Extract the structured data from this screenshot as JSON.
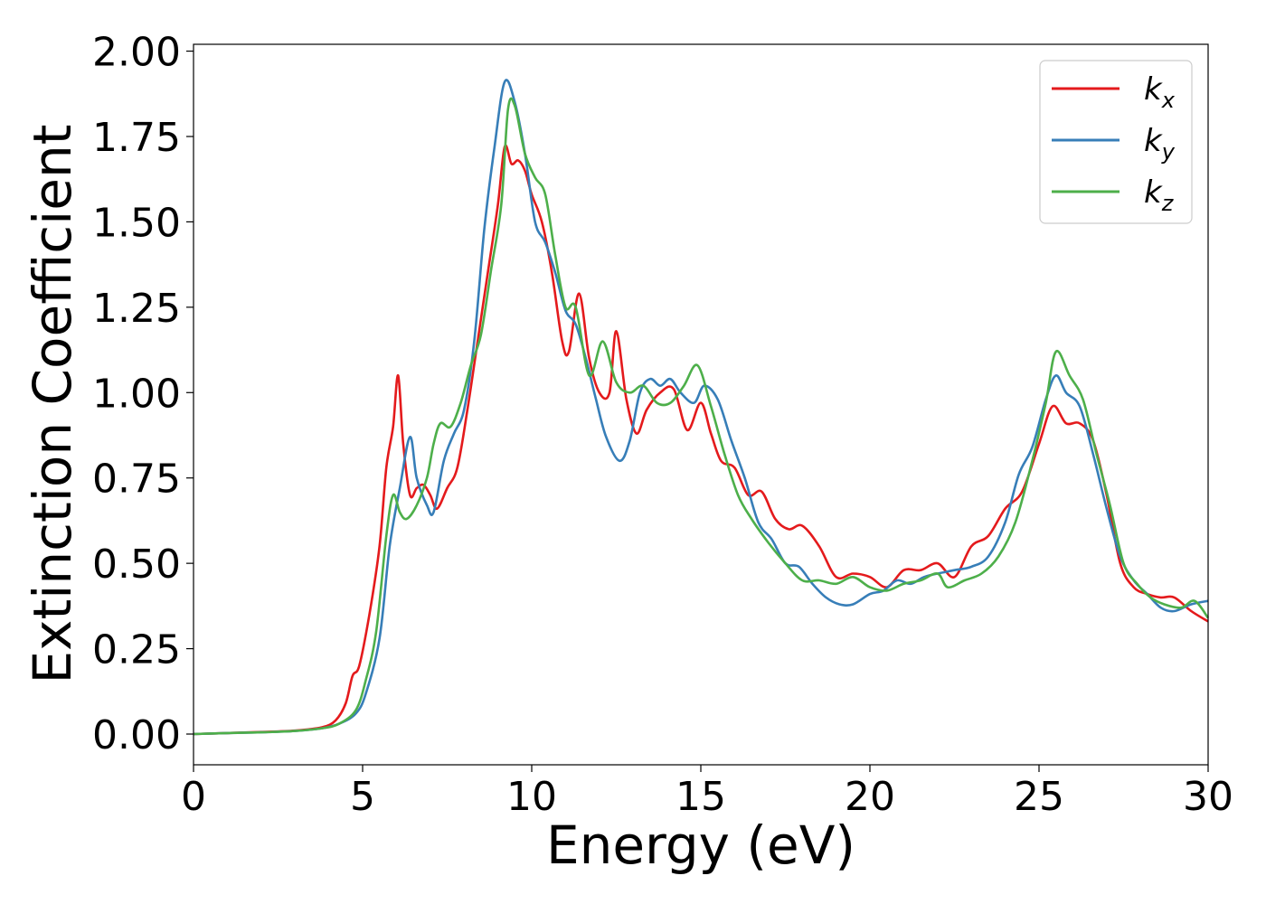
{
  "chart_data": {
    "type": "line",
    "xlabel": "Energy (eV)",
    "ylabel": "Extinction Coefficient",
    "xlim": [
      0,
      30
    ],
    "ylim": [
      -0.09,
      2.02
    ],
    "xticks": [
      "0",
      "5",
      "10",
      "15",
      "20",
      "25",
      "30"
    ],
    "yticks": [
      "0.00",
      "0.25",
      "0.50",
      "0.75",
      "1.00",
      "1.25",
      "1.50",
      "1.75",
      "2.00"
    ],
    "grid": false,
    "legend_position": "top-right",
    "series": [
      {
        "name": "k",
        "subscript": "x",
        "color": "#e41a1c",
        "points": [
          [
            0,
            0.0
          ],
          [
            1,
            0.003
          ],
          [
            2,
            0.006
          ],
          [
            3,
            0.01
          ],
          [
            3.8,
            0.02
          ],
          [
            4.2,
            0.04
          ],
          [
            4.5,
            0.09
          ],
          [
            4.7,
            0.17
          ],
          [
            4.9,
            0.2
          ],
          [
            5.2,
            0.35
          ],
          [
            5.5,
            0.55
          ],
          [
            5.7,
            0.78
          ],
          [
            5.9,
            0.9
          ],
          [
            6.05,
            1.05
          ],
          [
            6.2,
            0.85
          ],
          [
            6.4,
            0.7
          ],
          [
            6.6,
            0.72
          ],
          [
            6.8,
            0.73
          ],
          [
            7.0,
            0.7
          ],
          [
            7.2,
            0.66
          ],
          [
            7.5,
            0.72
          ],
          [
            7.8,
            0.78
          ],
          [
            8.1,
            0.95
          ],
          [
            8.4,
            1.15
          ],
          [
            8.7,
            1.35
          ],
          [
            9.0,
            1.55
          ],
          [
            9.2,
            1.72
          ],
          [
            9.4,
            1.67
          ],
          [
            9.6,
            1.68
          ],
          [
            9.8,
            1.65
          ],
          [
            10.0,
            1.58
          ],
          [
            10.3,
            1.5
          ],
          [
            10.6,
            1.35
          ],
          [
            10.9,
            1.15
          ],
          [
            11.1,
            1.12
          ],
          [
            11.4,
            1.29
          ],
          [
            11.7,
            1.1
          ],
          [
            12.0,
            1.0
          ],
          [
            12.3,
            1.0
          ],
          [
            12.5,
            1.18
          ],
          [
            12.8,
            0.98
          ],
          [
            13.1,
            0.88
          ],
          [
            13.4,
            0.95
          ],
          [
            13.8,
            1.0
          ],
          [
            14.2,
            1.01
          ],
          [
            14.6,
            0.89
          ],
          [
            15.0,
            0.97
          ],
          [
            15.3,
            0.88
          ],
          [
            15.6,
            0.8
          ],
          [
            16.0,
            0.78
          ],
          [
            16.4,
            0.7
          ],
          [
            16.8,
            0.71
          ],
          [
            17.2,
            0.63
          ],
          [
            17.6,
            0.6
          ],
          [
            18.0,
            0.61
          ],
          [
            18.5,
            0.55
          ],
          [
            19.0,
            0.46
          ],
          [
            19.5,
            0.47
          ],
          [
            20.0,
            0.46
          ],
          [
            20.5,
            0.43
          ],
          [
            21.0,
            0.48
          ],
          [
            21.5,
            0.48
          ],
          [
            22.0,
            0.5
          ],
          [
            22.5,
            0.46
          ],
          [
            23.0,
            0.55
          ],
          [
            23.5,
            0.58
          ],
          [
            24.0,
            0.66
          ],
          [
            24.5,
            0.71
          ],
          [
            25.0,
            0.85
          ],
          [
            25.4,
            0.96
          ],
          [
            25.8,
            0.91
          ],
          [
            26.2,
            0.91
          ],
          [
            26.6,
            0.86
          ],
          [
            27.0,
            0.7
          ],
          [
            27.4,
            0.5
          ],
          [
            27.8,
            0.43
          ],
          [
            28.2,
            0.41
          ],
          [
            28.6,
            0.4
          ],
          [
            29.0,
            0.4
          ],
          [
            29.5,
            0.36
          ],
          [
            30,
            0.33
          ]
        ]
      },
      {
        "name": "k",
        "subscript": "y",
        "color": "#377eb8",
        "points": [
          [
            0,
            0.0
          ],
          [
            1,
            0.003
          ],
          [
            2,
            0.005
          ],
          [
            3,
            0.009
          ],
          [
            3.8,
            0.017
          ],
          [
            4.3,
            0.03
          ],
          [
            4.8,
            0.06
          ],
          [
            5.1,
            0.12
          ],
          [
            5.5,
            0.28
          ],
          [
            5.8,
            0.55
          ],
          [
            6.1,
            0.72
          ],
          [
            6.4,
            0.87
          ],
          [
            6.6,
            0.75
          ],
          [
            6.9,
            0.67
          ],
          [
            7.1,
            0.65
          ],
          [
            7.4,
            0.8
          ],
          [
            7.7,
            0.88
          ],
          [
            8.0,
            0.95
          ],
          [
            8.3,
            1.15
          ],
          [
            8.6,
            1.48
          ],
          [
            8.9,
            1.72
          ],
          [
            9.2,
            1.91
          ],
          [
            9.5,
            1.85
          ],
          [
            9.8,
            1.7
          ],
          [
            10.1,
            1.5
          ],
          [
            10.4,
            1.44
          ],
          [
            10.7,
            1.35
          ],
          [
            11.0,
            1.24
          ],
          [
            11.3,
            1.2
          ],
          [
            11.6,
            1.1
          ],
          [
            11.9,
            0.98
          ],
          [
            12.2,
            0.87
          ],
          [
            12.6,
            0.8
          ],
          [
            12.9,
            0.86
          ],
          [
            13.2,
            1.0
          ],
          [
            13.5,
            1.04
          ],
          [
            13.8,
            1.02
          ],
          [
            14.1,
            1.04
          ],
          [
            14.4,
            1.0
          ],
          [
            14.8,
            0.97
          ],
          [
            15.1,
            1.02
          ],
          [
            15.5,
            0.98
          ],
          [
            15.9,
            0.86
          ],
          [
            16.3,
            0.75
          ],
          [
            16.7,
            0.62
          ],
          [
            17.1,
            0.57
          ],
          [
            17.5,
            0.5
          ],
          [
            17.9,
            0.49
          ],
          [
            18.3,
            0.44
          ],
          [
            18.7,
            0.4
          ],
          [
            19.1,
            0.38
          ],
          [
            19.5,
            0.38
          ],
          [
            20.0,
            0.41
          ],
          [
            20.4,
            0.42
          ],
          [
            20.8,
            0.45
          ],
          [
            21.2,
            0.44
          ],
          [
            21.6,
            0.46
          ],
          [
            22.0,
            0.47
          ],
          [
            22.5,
            0.48
          ],
          [
            23.0,
            0.49
          ],
          [
            23.5,
            0.52
          ],
          [
            24.0,
            0.62
          ],
          [
            24.4,
            0.76
          ],
          [
            24.8,
            0.84
          ],
          [
            25.2,
            0.98
          ],
          [
            25.5,
            1.05
          ],
          [
            25.8,
            1.0
          ],
          [
            26.2,
            0.96
          ],
          [
            26.6,
            0.82
          ],
          [
            27.0,
            0.66
          ],
          [
            27.4,
            0.52
          ],
          [
            27.8,
            0.45
          ],
          [
            28.2,
            0.41
          ],
          [
            28.6,
            0.37
          ],
          [
            29.0,
            0.36
          ],
          [
            29.5,
            0.38
          ],
          [
            30,
            0.39
          ]
        ]
      },
      {
        "name": "k",
        "subscript": "z",
        "color": "#4daf4a",
        "points": [
          [
            0,
            0.0
          ],
          [
            1,
            0.003
          ],
          [
            2,
            0.005
          ],
          [
            3,
            0.009
          ],
          [
            3.8,
            0.017
          ],
          [
            4.3,
            0.03
          ],
          [
            4.8,
            0.07
          ],
          [
            5.1,
            0.16
          ],
          [
            5.4,
            0.3
          ],
          [
            5.7,
            0.58
          ],
          [
            5.9,
            0.7
          ],
          [
            6.1,
            0.65
          ],
          [
            6.3,
            0.63
          ],
          [
            6.6,
            0.67
          ],
          [
            6.9,
            0.75
          ],
          [
            7.1,
            0.85
          ],
          [
            7.3,
            0.91
          ],
          [
            7.6,
            0.9
          ],
          [
            7.9,
            0.97
          ],
          [
            8.2,
            1.08
          ],
          [
            8.5,
            1.17
          ],
          [
            8.8,
            1.36
          ],
          [
            9.1,
            1.55
          ],
          [
            9.3,
            1.83
          ],
          [
            9.5,
            1.84
          ],
          [
            9.8,
            1.7
          ],
          [
            10.1,
            1.63
          ],
          [
            10.4,
            1.58
          ],
          [
            10.7,
            1.4
          ],
          [
            11.0,
            1.25
          ],
          [
            11.3,
            1.25
          ],
          [
            11.7,
            1.05
          ],
          [
            12.1,
            1.15
          ],
          [
            12.5,
            1.03
          ],
          [
            12.9,
            1.0
          ],
          [
            13.3,
            1.02
          ],
          [
            13.7,
            0.97
          ],
          [
            14.1,
            0.97
          ],
          [
            14.5,
            1.02
          ],
          [
            14.9,
            1.08
          ],
          [
            15.3,
            0.96
          ],
          [
            15.7,
            0.82
          ],
          [
            16.1,
            0.7
          ],
          [
            16.5,
            0.63
          ],
          [
            17.0,
            0.56
          ],
          [
            17.5,
            0.5
          ],
          [
            18.0,
            0.45
          ],
          [
            18.5,
            0.45
          ],
          [
            19.0,
            0.44
          ],
          [
            19.5,
            0.46
          ],
          [
            20.0,
            0.43
          ],
          [
            20.5,
            0.42
          ],
          [
            21.0,
            0.44
          ],
          [
            21.5,
            0.45
          ],
          [
            22.0,
            0.47
          ],
          [
            22.3,
            0.43
          ],
          [
            22.8,
            0.45
          ],
          [
            23.3,
            0.47
          ],
          [
            23.8,
            0.52
          ],
          [
            24.3,
            0.62
          ],
          [
            24.8,
            0.8
          ],
          [
            25.2,
            0.97
          ],
          [
            25.5,
            1.12
          ],
          [
            25.9,
            1.05
          ],
          [
            26.3,
            0.98
          ],
          [
            26.7,
            0.82
          ],
          [
            27.1,
            0.67
          ],
          [
            27.5,
            0.5
          ],
          [
            27.9,
            0.44
          ],
          [
            28.3,
            0.4
          ],
          [
            28.7,
            0.38
          ],
          [
            29.2,
            0.37
          ],
          [
            29.6,
            0.39
          ],
          [
            30,
            0.34
          ]
        ]
      }
    ]
  }
}
